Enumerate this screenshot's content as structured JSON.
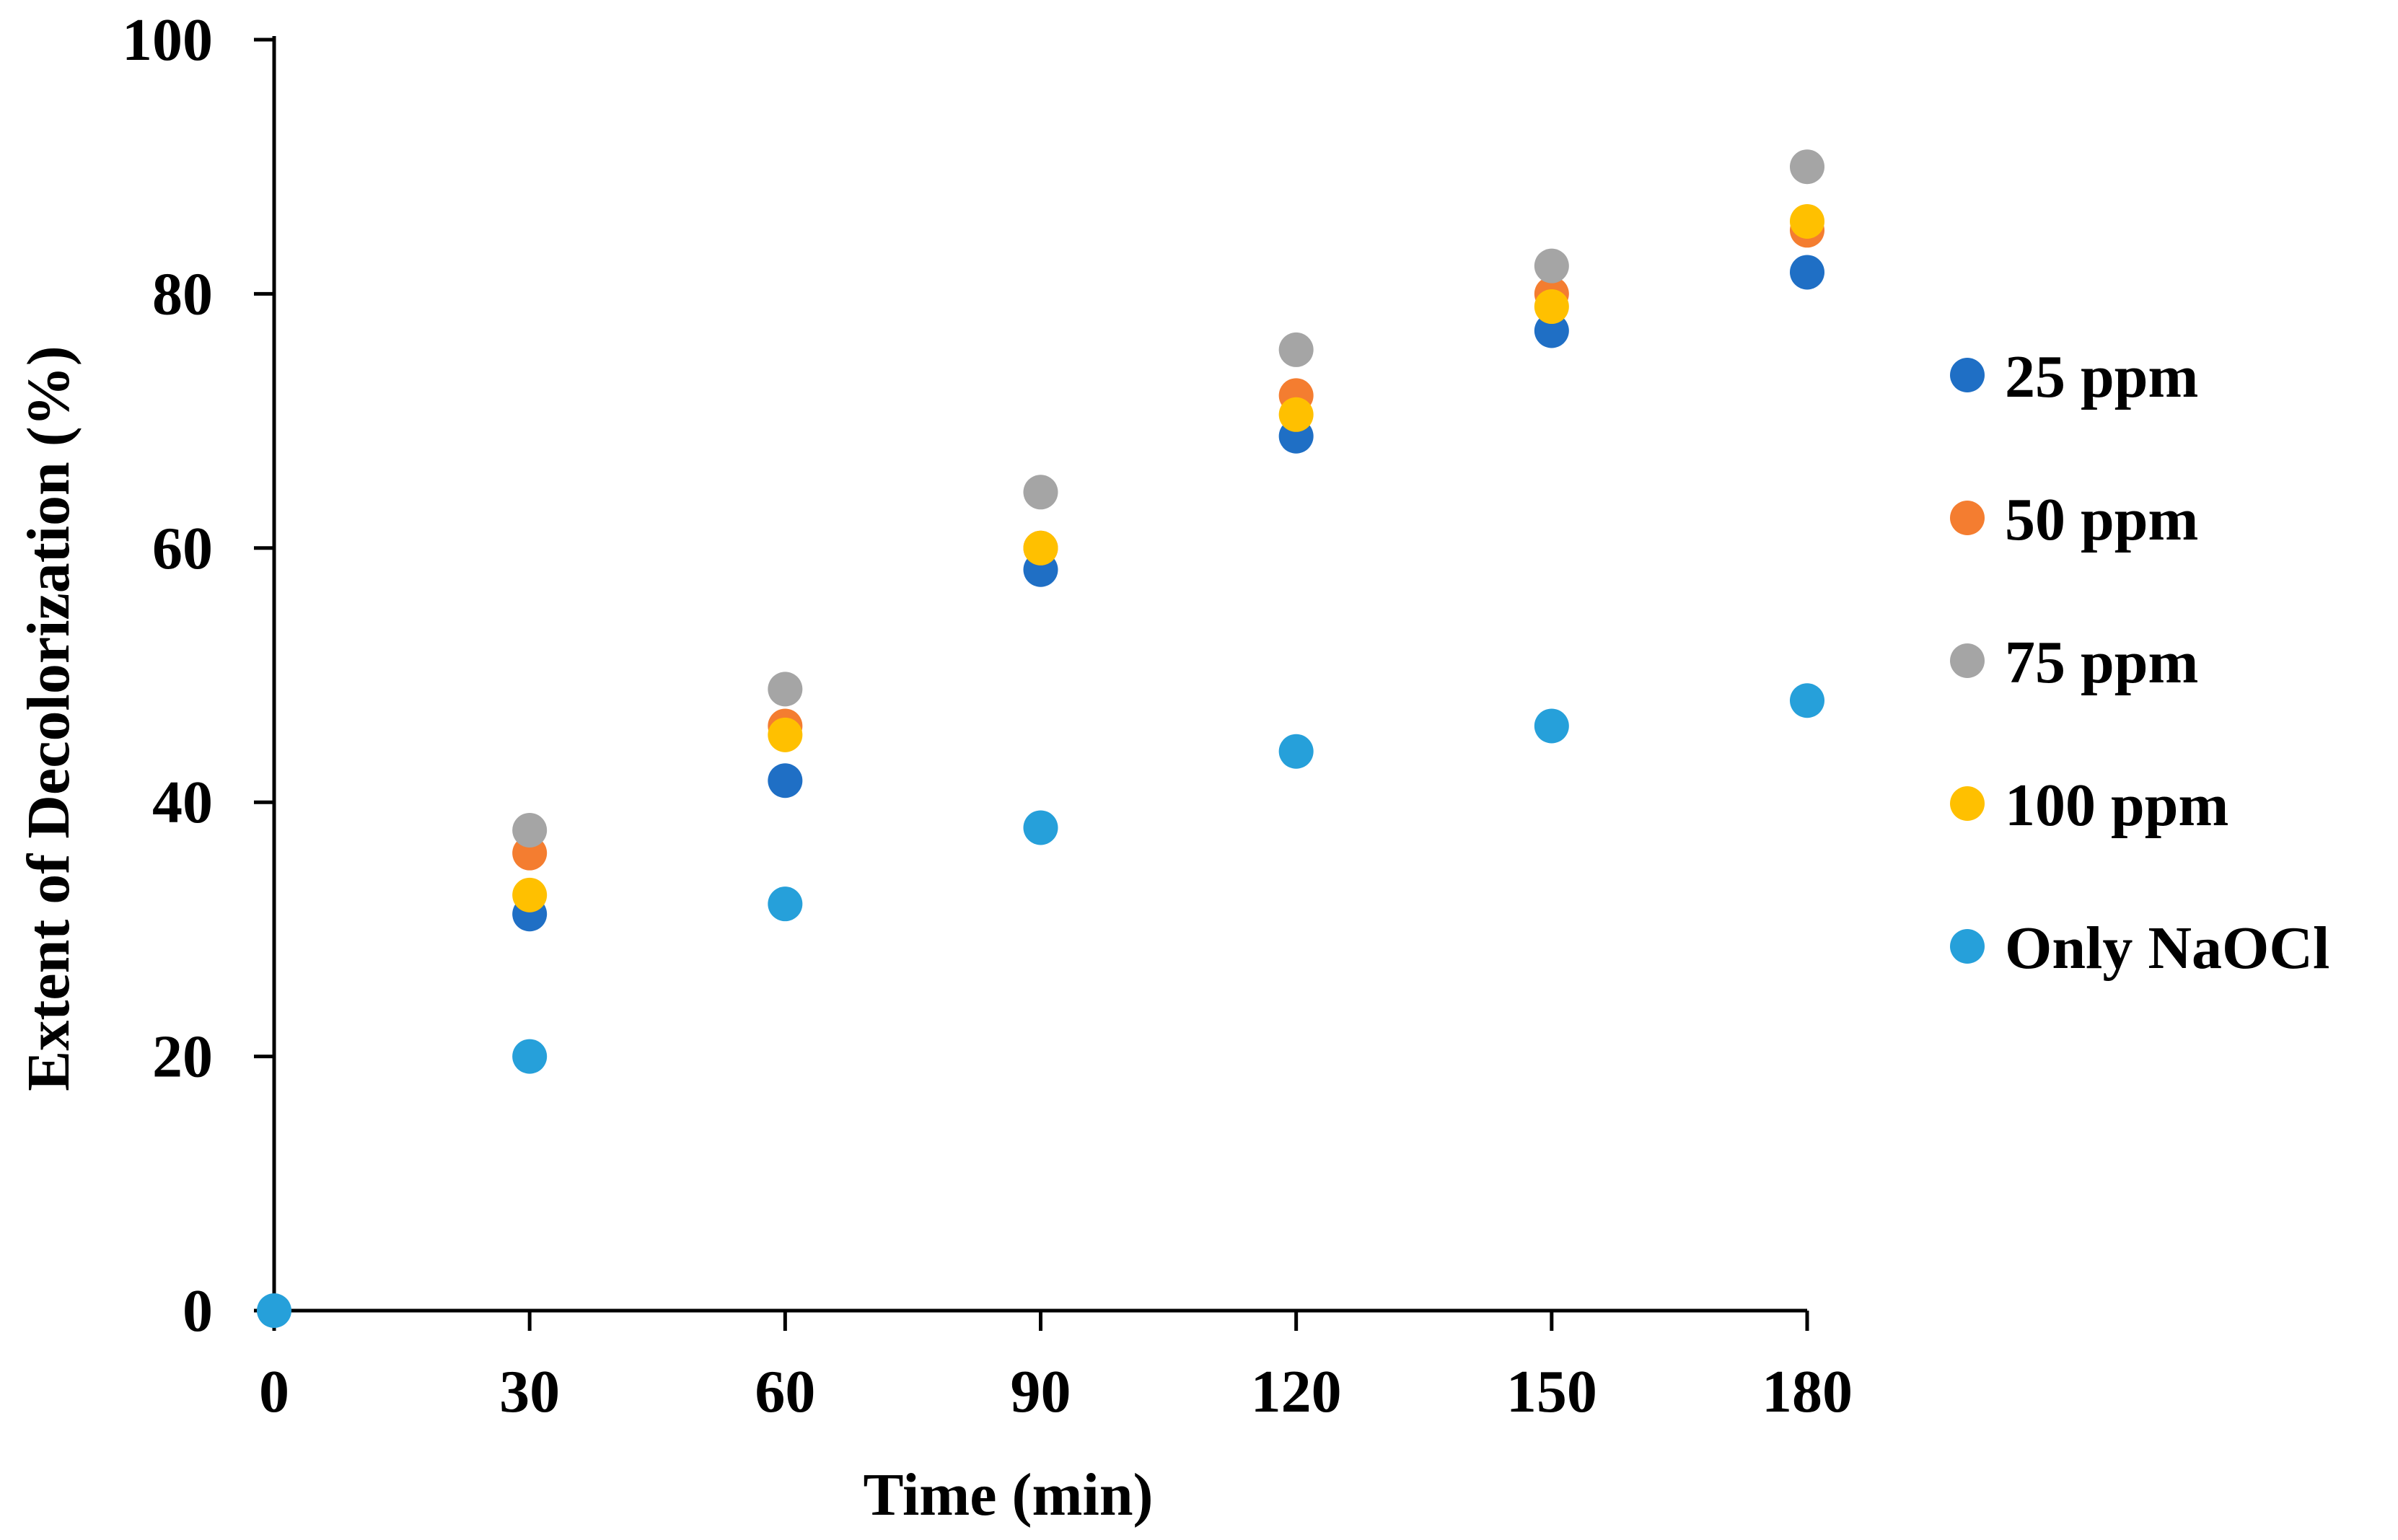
{
  "chart_data": {
    "type": "scatter",
    "title": "",
    "xlabel": "Time (min)",
    "ylabel": "Extent of Decolorization (%)",
    "xlim": [
      0,
      180
    ],
    "ylim": [
      0,
      100
    ],
    "xticks": [
      0,
      30,
      60,
      90,
      120,
      150,
      180
    ],
    "yticks": [
      0,
      20,
      40,
      60,
      80,
      100
    ],
    "grid": false,
    "legend_position": "right",
    "series": [
      {
        "name": "25 ppm",
        "color": "#1F6FC5",
        "x": [
          30,
          60,
          90,
          120,
          150,
          180
        ],
        "y": [
          31.2,
          41.7,
          58.3,
          68.8,
          77.1,
          81.7
        ]
      },
      {
        "name": "50 ppm",
        "color": "#F47D30",
        "x": [
          30,
          60,
          90,
          120,
          150,
          180
        ],
        "y": [
          36.0,
          46.0,
          60.0,
          72.0,
          80.0,
          85.0
        ]
      },
      {
        "name": "75 ppm",
        "color": "#A5A5A5",
        "x": [
          30,
          60,
          90,
          120,
          150,
          180
        ],
        "y": [
          37.8,
          48.9,
          64.4,
          75.6,
          82.2,
          90.0
        ]
      },
      {
        "name": "100 ppm",
        "color": "#FFC000",
        "x": [
          30,
          60,
          90,
          120,
          150,
          180
        ],
        "y": [
          32.7,
          45.3,
          60.0,
          70.5,
          79.0,
          85.7
        ]
      },
      {
        "name": "Only NaOCl",
        "color": "#26A0DA",
        "x": [
          0,
          30,
          60,
          90,
          120,
          150,
          180
        ],
        "y": [
          0,
          20,
          32,
          38,
          44,
          46,
          48
        ]
      }
    ]
  }
}
